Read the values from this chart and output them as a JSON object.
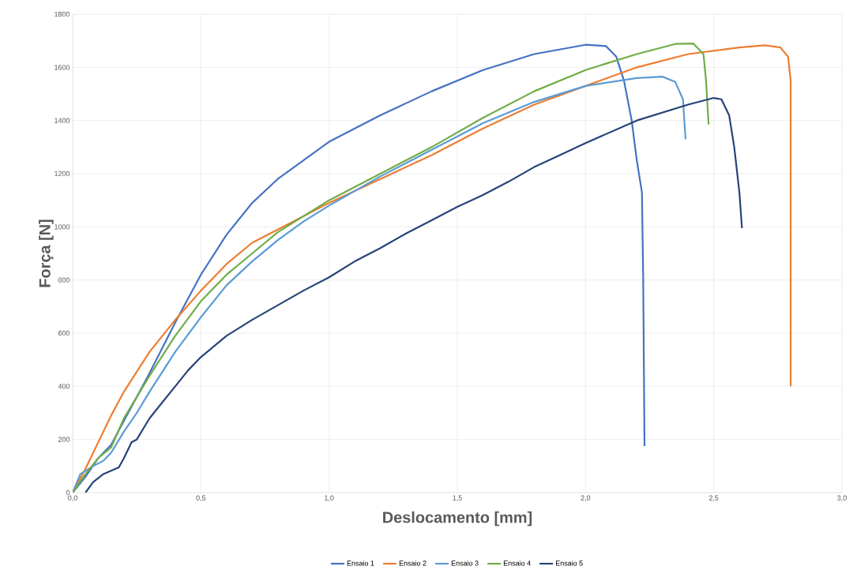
{
  "chart_data": {
    "type": "line",
    "xlabel": "Deslocamento [mm]",
    "ylabel": "Força [N]",
    "xlim": [
      0,
      3.0
    ],
    "xticks": [
      {
        "value": 0,
        "label": "0,0"
      },
      {
        "value": 0.5,
        "label": "0,5"
      },
      {
        "value": 1.0,
        "label": "1,0"
      },
      {
        "value": 1.5,
        "label": "1,5"
      },
      {
        "value": 2.0,
        "label": "2,0"
      },
      {
        "value": 2.5,
        "label": "2,5"
      },
      {
        "value": 3.0,
        "label": "3,0"
      }
    ],
    "ylim": [
      0,
      1800
    ],
    "yticks": [
      0,
      200,
      400,
      600,
      800,
      1000,
      1200,
      1400,
      1600,
      1800
    ],
    "grid": true,
    "legend": "bottom",
    "marker": "none",
    "line_style": "solid",
    "series": [
      {
        "name": "Ensaio 1",
        "color": "#4472c4",
        "x": [
          0,
          0.05,
          0.1,
          0.15,
          0.2,
          0.3,
          0.4,
          0.5,
          0.6,
          0.7,
          0.8,
          0.9,
          1.0,
          1.2,
          1.4,
          1.6,
          1.8,
          2.0,
          2.08,
          2.12,
          2.15,
          2.18,
          2.2,
          2.22,
          2.225,
          2.23
        ],
        "values": [
          0,
          60,
          130,
          180,
          270,
          450,
          640,
          820,
          970,
          1090,
          1180,
          1250,
          1320,
          1420,
          1510,
          1590,
          1650,
          1685,
          1680,
          1640,
          1550,
          1400,
          1250,
          1130,
          800,
          175
        ]
      },
      {
        "name": "Ensaio 2",
        "color": "#ed7d31",
        "x": [
          0,
          0.05,
          0.1,
          0.15,
          0.2,
          0.3,
          0.4,
          0.5,
          0.6,
          0.7,
          0.8,
          0.9,
          1.0,
          1.2,
          1.4,
          1.6,
          1.8,
          2.0,
          2.2,
          2.4,
          2.6,
          2.7,
          2.76,
          2.79,
          2.8,
          2.8
        ],
        "values": [
          0,
          90,
          190,
          290,
          380,
          530,
          650,
          760,
          860,
          940,
          990,
          1040,
          1090,
          1180,
          1270,
          1370,
          1460,
          1530,
          1600,
          1650,
          1675,
          1683,
          1675,
          1640,
          1550,
          400
        ]
      },
      {
        "name": "Ensaio 3",
        "color": "#5b9bd5",
        "x": [
          0,
          0.03,
          0.08,
          0.12,
          0.15,
          0.2,
          0.25,
          0.3,
          0.4,
          0.5,
          0.6,
          0.7,
          0.8,
          0.9,
          1.0,
          1.2,
          1.4,
          1.6,
          1.8,
          2.0,
          2.2,
          2.3,
          2.35,
          2.38,
          2.39
        ],
        "values": [
          0,
          70,
          100,
          120,
          150,
          230,
          300,
          380,
          530,
          660,
          780,
          870,
          950,
          1020,
          1080,
          1190,
          1290,
          1390,
          1470,
          1530,
          1560,
          1565,
          1545,
          1480,
          1330
        ]
      },
      {
        "name": "Ensaio 4",
        "color": "#70ad47",
        "x": [
          0,
          0.05,
          0.1,
          0.15,
          0.2,
          0.3,
          0.4,
          0.5,
          0.6,
          0.7,
          0.8,
          0.9,
          1.0,
          1.2,
          1.4,
          1.6,
          1.8,
          2.0,
          2.2,
          2.35,
          2.42,
          2.46,
          2.47,
          2.48
        ],
        "values": [
          0,
          70,
          130,
          170,
          280,
          440,
          590,
          720,
          820,
          900,
          980,
          1040,
          1100,
          1200,
          1300,
          1410,
          1510,
          1590,
          1650,
          1688,
          1690,
          1650,
          1550,
          1385
        ]
      },
      {
        "name": "Ensaio 5",
        "color": "#264478",
        "x": [
          0.05,
          0.08,
          0.12,
          0.18,
          0.2,
          0.23,
          0.25,
          0.3,
          0.35,
          0.4,
          0.45,
          0.5,
          0.6,
          0.7,
          0.8,
          0.9,
          1.0,
          1.1,
          1.2,
          1.3,
          1.4,
          1.5,
          1.6,
          1.7,
          1.8,
          1.9,
          2.0,
          2.2,
          2.4,
          2.5,
          2.53,
          2.56,
          2.58,
          2.6,
          2.61
        ],
        "values": [
          0,
          40,
          70,
          95,
          130,
          190,
          200,
          280,
          340,
          400,
          460,
          510,
          590,
          650,
          705,
          760,
          810,
          870,
          920,
          975,
          1025,
          1075,
          1120,
          1170,
          1225,
          1270,
          1315,
          1400,
          1460,
          1485,
          1480,
          1420,
          1300,
          1130,
          995
        ]
      }
    ]
  }
}
